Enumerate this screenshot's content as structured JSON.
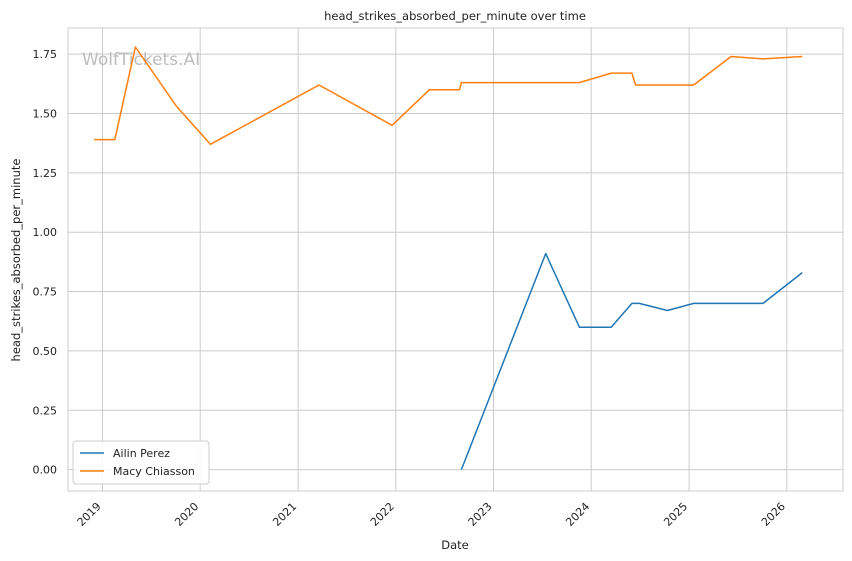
{
  "chart_data": {
    "type": "line",
    "title": "head_strikes_absorbed_per_minute over time",
    "xlabel": "Date",
    "ylabel": "head_strikes_absorbed_per_minute",
    "watermark": "WolfTickets.AI",
    "x_ticks": [
      "2019",
      "2020",
      "2021",
      "2022",
      "2023",
      "2024",
      "2025",
      "2026"
    ],
    "y_ticks": [
      "0.00",
      "0.25",
      "0.50",
      "0.75",
      "1.00",
      "1.25",
      "1.50",
      "1.75"
    ],
    "xlim": [
      "2018-08-25",
      "2026-07-30"
    ],
    "ylim": [
      -0.09,
      1.86
    ],
    "grid": true,
    "legend_position": "lower-left",
    "series": [
      {
        "name": "Ailin Perez",
        "color": "#1f77b4",
        "points": [
          {
            "x": "2022-09-03",
            "y": 0.0
          },
          {
            "x": "2023-07-15",
            "y": 0.91
          },
          {
            "x": "2023-11-18",
            "y": 0.6
          },
          {
            "x": "2024-03-16",
            "y": 0.6
          },
          {
            "x": "2024-06-01",
            "y": 0.7
          },
          {
            "x": "2024-06-29",
            "y": 0.7
          },
          {
            "x": "2024-10-12",
            "y": 0.67
          },
          {
            "x": "2025-01-18",
            "y": 0.7
          },
          {
            "x": "2025-10-04",
            "y": 0.7
          },
          {
            "x": "2026-02-28",
            "y": 0.83
          }
        ]
      },
      {
        "name": "Macy Chiasson",
        "color": "#ff7f0e",
        "points": [
          {
            "x": "2018-12-01",
            "y": 1.39
          },
          {
            "x": "2019-02-16",
            "y": 1.39
          },
          {
            "x": "2019-05-04",
            "y": 1.78
          },
          {
            "x": "2019-10-05",
            "y": 1.53
          },
          {
            "x": "2020-02-08",
            "y": 1.37
          },
          {
            "x": "2021-03-20",
            "y": 1.62
          },
          {
            "x": "2021-12-18",
            "y": 1.45
          },
          {
            "x": "2022-05-07",
            "y": 1.6
          },
          {
            "x": "2022-08-27",
            "y": 1.6
          },
          {
            "x": "2022-09-03",
            "y": 1.63
          },
          {
            "x": "2023-11-18",
            "y": 1.63
          },
          {
            "x": "2024-03-16",
            "y": 1.67
          },
          {
            "x": "2024-06-01",
            "y": 1.67
          },
          {
            "x": "2024-06-15",
            "y": 1.62
          },
          {
            "x": "2025-01-18",
            "y": 1.62
          },
          {
            "x": "2025-06-07",
            "y": 1.74
          },
          {
            "x": "2025-10-04",
            "y": 1.73
          },
          {
            "x": "2026-02-28",
            "y": 1.74
          }
        ]
      }
    ]
  }
}
